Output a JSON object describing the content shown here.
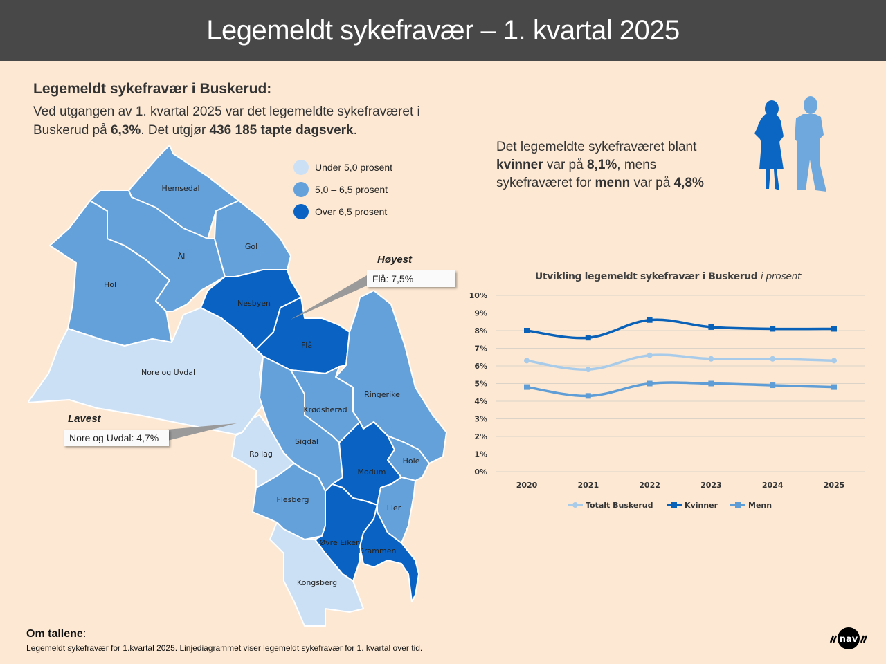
{
  "header": {
    "title": "Legemeldt sykefravær – 1. kvartal 2025"
  },
  "summary": {
    "subtitle": "Legemeldt sykefravær i Buskerud:",
    "line1": "Ved utgangen av 1. kvartal 2025 var det legemeldte sykefraværet i",
    "line2_pre": "Buskerud på ",
    "line2_value": "6,3%",
    "line2_mid": ". Det utgjør ",
    "line2_days": "436 185 tapte dagsverk",
    "line2_end": "."
  },
  "gender": {
    "t1": "Det legemeldte sykefraværet blant",
    "t2_women": "kvinner",
    "t2_mid": " var på ",
    "t2_value": "8,1%",
    "t2_end": ", mens",
    "t3_pre": "sykefraværet for ",
    "t3_men": "menn",
    "t3_mid": " var på ",
    "t3_value": "4,8%",
    "women_color": "#0a66c2",
    "men_color": "#6fa8dc"
  },
  "map": {
    "legend": [
      {
        "label": "Under 5,0 prosent",
        "color": "#cce0f5"
      },
      {
        "label": "5,0 – 6,5 prosent",
        "color": "#64a0da"
      },
      {
        "label": "Over 6,5 prosent",
        "color": "#0a62c2"
      }
    ],
    "highest": {
      "title": "Høyest",
      "label": "Flå: 7,5%"
    },
    "lowest": {
      "title": "Lavest",
      "label": "Nore og Uvdal: 4,7%"
    },
    "municipalities": [
      {
        "name": "Hemsedal",
        "category": "mid"
      },
      {
        "name": "Hol",
        "category": "mid"
      },
      {
        "name": "Ål",
        "category": "mid"
      },
      {
        "name": "Gol",
        "category": "mid"
      },
      {
        "name": "Nesbyen",
        "category": "high"
      },
      {
        "name": "Flå",
        "category": "high"
      },
      {
        "name": "Nore og Uvdal",
        "category": "low"
      },
      {
        "name": "Ringerike",
        "category": "mid"
      },
      {
        "name": "Krødsherad",
        "category": "mid"
      },
      {
        "name": "Sigdal",
        "category": "mid"
      },
      {
        "name": "Rollag",
        "category": "low"
      },
      {
        "name": "Modum",
        "category": "high"
      },
      {
        "name": "Hole",
        "category": "mid"
      },
      {
        "name": "Flesberg",
        "category": "mid"
      },
      {
        "name": "Lier",
        "category": "mid"
      },
      {
        "name": "Øvre Eiker",
        "category": "high"
      },
      {
        "name": "Drammen",
        "category": "high"
      },
      {
        "name": "Kongsberg",
        "category": "low"
      }
    ]
  },
  "chart_data": {
    "type": "line",
    "title": "Utvikling legemeldt sykefravær i Buskerud",
    "title_italic": "i prosent",
    "categories": [
      "2020",
      "2021",
      "2022",
      "2023",
      "2024",
      "2025"
    ],
    "series": [
      {
        "name": "Totalt Buskerud",
        "values": [
          6.3,
          5.8,
          6.6,
          6.4,
          6.4,
          6.3
        ],
        "color": "#a9cbea",
        "marker": "circle"
      },
      {
        "name": "Kvinner",
        "values": [
          8.0,
          7.6,
          8.6,
          8.2,
          8.1,
          8.1
        ],
        "color": "#0a62b8",
        "marker": "square"
      },
      {
        "name": "Menn",
        "values": [
          4.8,
          4.3,
          5.0,
          5.0,
          4.9,
          4.8
        ],
        "color": "#5f9dd6",
        "marker": "square"
      }
    ],
    "yticks": [
      "0%",
      "1%",
      "2%",
      "3%",
      "4%",
      "5%",
      "6%",
      "7%",
      "8%",
      "9%",
      "10%"
    ],
    "ylim": [
      0,
      10
    ],
    "xlabel": "",
    "ylabel": "",
    "grid": true,
    "legend_position": "bottom"
  },
  "footer": {
    "title": "Om tallene",
    "colon": ":",
    "text": "Legemeldt sykefravær for 1.kvartal 2025. Linjediagrammet viser legemeldt sykefravær for 1. kvartal over tid."
  },
  "logo": {
    "text": "nav"
  }
}
